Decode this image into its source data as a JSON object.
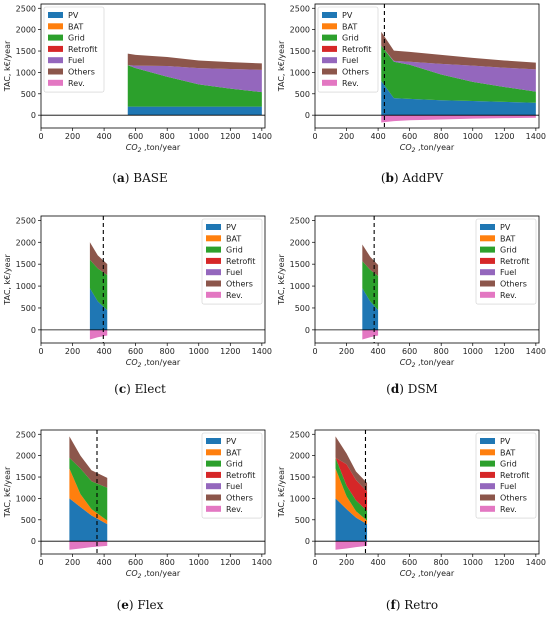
{
  "chart_data": [
    {
      "type": "area",
      "caption_letter": "(a)",
      "caption_name": "BASE",
      "xlabel_prefix": "CO",
      "xlabel_sub": "2",
      "xlabel_suffix": " ,ton/year",
      "ylabel": "TAC, k€/year",
      "xlim": [
        0,
        1420
      ],
      "ylim": [
        -300,
        2600
      ],
      "xticks": [
        0,
        200,
        400,
        600,
        800,
        1000,
        1200,
        1400
      ],
      "yticks": [
        0,
        500,
        1000,
        1500,
        2000,
        2500
      ],
      "legend_position": "upper-left",
      "vline": null,
      "x": [
        550,
        600,
        800,
        1000,
        1200,
        1400
      ],
      "series": [
        {
          "name": "PV",
          "color": "#1f77b4",
          "values": [
            200,
            200,
            200,
            200,
            200,
            200
          ]
        },
        {
          "name": "BAT",
          "color": "#ff7f0e",
          "values": [
            0,
            0,
            0,
            0,
            0,
            0
          ]
        },
        {
          "name": "Grid",
          "color": "#2ca02c",
          "values": [
            970,
            900,
            700,
            520,
            420,
            340
          ]
        },
        {
          "name": "Retrofit",
          "color": "#d62728",
          "values": [
            0,
            0,
            0,
            0,
            0,
            0
          ]
        },
        {
          "name": "Fuel",
          "color": "#9467bd",
          "values": [
            0,
            60,
            250,
            380,
            460,
            520
          ]
        },
        {
          "name": "Others",
          "color": "#8c564b",
          "values": [
            270,
            250,
            210,
            180,
            160,
            150
          ]
        },
        {
          "name": "Rev.",
          "color": "#e377c2",
          "values": [
            0,
            0,
            0,
            0,
            0,
            0
          ]
        }
      ]
    },
    {
      "type": "area",
      "caption_letter": "(b)",
      "caption_name": "AddPV",
      "xlabel_prefix": "CO",
      "xlabel_sub": "2",
      "xlabel_suffix": " ,ton/year",
      "ylabel": "TAC, k€/year",
      "xlim": [
        0,
        1420
      ],
      "ylim": [
        -300,
        2600
      ],
      "xticks": [
        0,
        200,
        400,
        600,
        800,
        1000,
        1200,
        1400
      ],
      "yticks": [
        0,
        500,
        1000,
        1500,
        2000,
        2500
      ],
      "legend_position": "upper-left",
      "vline": 440,
      "x": [
        420,
        500,
        600,
        800,
        1000,
        1200,
        1400
      ],
      "series": [
        {
          "name": "PV",
          "color": "#1f77b4",
          "values": [
            800,
            400,
            380,
            350,
            330,
            310,
            290
          ]
        },
        {
          "name": "BAT",
          "color": "#ff7f0e",
          "values": [
            0,
            0,
            0,
            0,
            0,
            0,
            0
          ]
        },
        {
          "name": "Grid",
          "color": "#2ca02c",
          "values": [
            830,
            850,
            800,
            600,
            450,
            350,
            260
          ]
        },
        {
          "name": "Retrofit",
          "color": "#d62728",
          "values": [
            0,
            0,
            0,
            0,
            0,
            0,
            0
          ]
        },
        {
          "name": "Fuel",
          "color": "#9467bd",
          "values": [
            0,
            20,
            70,
            250,
            380,
            450,
            520
          ]
        },
        {
          "name": "Others",
          "color": "#8c564b",
          "values": [
            320,
            240,
            230,
            210,
            180,
            170,
            160
          ]
        },
        {
          "name": "Rev.",
          "color": "#e377c2",
          "values": [
            -170,
            -140,
            -120,
            -100,
            -80,
            -70,
            -60
          ]
        }
      ]
    },
    {
      "type": "area",
      "caption_letter": "(c)",
      "caption_name": "Elect",
      "xlabel_prefix": "CO",
      "xlabel_sub": "2",
      "xlabel_suffix": " ,ton/year",
      "ylabel": "TAC, k€/year",
      "xlim": [
        0,
        1420
      ],
      "ylim": [
        -300,
        2600
      ],
      "xticks": [
        0,
        200,
        400,
        600,
        800,
        1000,
        1200,
        1400
      ],
      "yticks": [
        0,
        500,
        1000,
        1500,
        2000,
        2500
      ],
      "legend_position": "upper-right",
      "vline": 395,
      "x": [
        310,
        360,
        420
      ],
      "series": [
        {
          "name": "PV",
          "color": "#1f77b4",
          "values": [
            950,
            650,
            450
          ]
        },
        {
          "name": "BAT",
          "color": "#ff7f0e",
          "values": [
            0,
            0,
            0
          ]
        },
        {
          "name": "Grid",
          "color": "#2ca02c",
          "values": [
            650,
            750,
            800
          ]
        },
        {
          "name": "Retrofit",
          "color": "#d62728",
          "values": [
            0,
            0,
            0
          ]
        },
        {
          "name": "Fuel",
          "color": "#9467bd",
          "values": [
            0,
            0,
            0
          ]
        },
        {
          "name": "Others",
          "color": "#8c564b",
          "values": [
            400,
            300,
            250
          ]
        },
        {
          "name": "Rev.",
          "color": "#e377c2",
          "values": [
            -220,
            -170,
            -130
          ]
        }
      ]
    },
    {
      "type": "area",
      "caption_letter": "(d)",
      "caption_name": "DSM",
      "xlabel_prefix": "CO",
      "xlabel_sub": "2",
      "xlabel_suffix": " ,ton/year",
      "ylabel": "TAC, k€/year",
      "xlim": [
        0,
        1420
      ],
      "ylim": [
        -300,
        2600
      ],
      "xticks": [
        0,
        200,
        400,
        600,
        800,
        1000,
        1200,
        1400
      ],
      "yticks": [
        0,
        500,
        1000,
        1500,
        2000,
        2500
      ],
      "legend_position": "upper-right",
      "vline": 375,
      "x": [
        300,
        350,
        400
      ],
      "series": [
        {
          "name": "PV",
          "color": "#1f77b4",
          "values": [
            950,
            650,
            450
          ]
        },
        {
          "name": "BAT",
          "color": "#ff7f0e",
          "values": [
            0,
            0,
            0
          ]
        },
        {
          "name": "Grid",
          "color": "#2ca02c",
          "values": [
            620,
            720,
            780
          ]
        },
        {
          "name": "Retrofit",
          "color": "#d62728",
          "values": [
            0,
            0,
            0
          ]
        },
        {
          "name": "Fuel",
          "color": "#9467bd",
          "values": [
            0,
            0,
            0
          ]
        },
        {
          "name": "Others",
          "color": "#8c564b",
          "values": [
            380,
            300,
            250
          ]
        },
        {
          "name": "Rev.",
          "color": "#e377c2",
          "values": [
            -220,
            -170,
            -130
          ]
        }
      ]
    },
    {
      "type": "area",
      "caption_letter": "(e)",
      "caption_name": "Flex",
      "xlabel_prefix": "CO",
      "xlabel_sub": "2",
      "xlabel_suffix": " ,ton/year",
      "ylabel": "TAC, k€/year",
      "xlim": [
        0,
        1420
      ],
      "ylim": [
        -300,
        2600
      ],
      "xticks": [
        0,
        200,
        400,
        600,
        800,
        1000,
        1200,
        1400
      ],
      "yticks": [
        0,
        500,
        1000,
        1500,
        2000,
        2500
      ],
      "legend_position": "upper-right",
      "vline": 355,
      "x": [
        180,
        250,
        320,
        420
      ],
      "series": [
        {
          "name": "PV",
          "color": "#1f77b4",
          "values": [
            1000,
            800,
            600,
            400
          ]
        },
        {
          "name": "BAT",
          "color": "#ff7f0e",
          "values": [
            700,
            300,
            150,
            80
          ]
        },
        {
          "name": "Grid",
          "color": "#2ca02c",
          "values": [
            250,
            600,
            650,
            770
          ]
        },
        {
          "name": "Retrofit",
          "color": "#d62728",
          "values": [
            0,
            0,
            0,
            0
          ]
        },
        {
          "name": "Fuel",
          "color": "#9467bd",
          "values": [
            0,
            0,
            0,
            0
          ]
        },
        {
          "name": "Others",
          "color": "#8c564b",
          "values": [
            500,
            300,
            260,
            230
          ]
        },
        {
          "name": "Rev.",
          "color": "#e377c2",
          "values": [
            -200,
            -170,
            -140,
            -110
          ]
        }
      ]
    },
    {
      "type": "area",
      "caption_letter": "(f)",
      "caption_name": "Retro",
      "xlabel_prefix": "CO",
      "xlabel_sub": "2",
      "xlabel_suffix": " ,ton/year",
      "ylabel": "TAC, k€/year",
      "xlim": [
        0,
        1420
      ],
      "ylim": [
        -300,
        2600
      ],
      "xticks": [
        0,
        200,
        400,
        600,
        800,
        1000,
        1200,
        1400
      ],
      "yticks": [
        0,
        500,
        1000,
        1500,
        2000,
        2500
      ],
      "legend_position": "upper-right",
      "vline": 320,
      "x": [
        130,
        200,
        260,
        330
      ],
      "series": [
        {
          "name": "PV",
          "color": "#1f77b4",
          "values": [
            1000,
            750,
            550,
            400
          ]
        },
        {
          "name": "BAT",
          "color": "#ff7f0e",
          "values": [
            700,
            300,
            150,
            80
          ]
        },
        {
          "name": "Grid",
          "color": "#2ca02c",
          "values": [
            250,
            250,
            250,
            230
          ]
        },
        {
          "name": "Retrofit",
          "color": "#d62728",
          "values": [
            0,
            500,
            480,
            450
          ]
        },
        {
          "name": "Fuel",
          "color": "#9467bd",
          "values": [
            0,
            0,
            0,
            0
          ]
        },
        {
          "name": "Others",
          "color": "#8c564b",
          "values": [
            500,
            250,
            200,
            200
          ]
        },
        {
          "name": "Rev.",
          "color": "#e377c2",
          "values": [
            -200,
            -170,
            -140,
            -110
          ]
        }
      ]
    }
  ]
}
